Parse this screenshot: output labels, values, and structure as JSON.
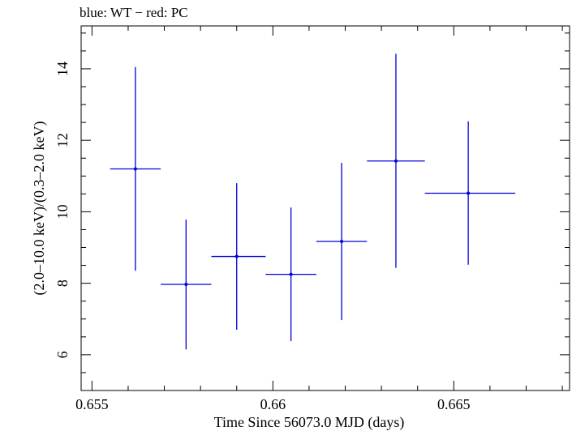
{
  "chart_data": {
    "type": "scatter",
    "title": "blue: WT − red: PC",
    "xlabel": "Time Since 56073.0 MJD (days)",
    "ylabel": "(2.0–10.0 keV)/(0.3–2.0 keV)",
    "xlim": [
      0.6547,
      0.6682
    ],
    "ylim": [
      5.0,
      15.2
    ],
    "xticks": [
      0.655,
      0.66,
      0.665
    ],
    "xtick_labels": [
      "0.655",
      "0.66",
      "0.665"
    ],
    "yticks": [
      6,
      8,
      10,
      12,
      14
    ],
    "ytick_labels": [
      "6",
      "8",
      "10",
      "12",
      "14"
    ],
    "grid": false,
    "series": [
      {
        "name": "WT",
        "color": "#0000dd",
        "points": [
          {
            "x": 0.6562,
            "x_lo": 0.6555,
            "x_hi": 0.6569,
            "y": 11.2,
            "y_lo": 8.35,
            "y_hi": 14.05
          },
          {
            "x": 0.6576,
            "x_lo": 0.6569,
            "x_hi": 0.6583,
            "y": 7.97,
            "y_lo": 6.15,
            "y_hi": 9.78
          },
          {
            "x": 0.659,
            "x_lo": 0.6583,
            "x_hi": 0.6598,
            "y": 8.75,
            "y_lo": 6.7,
            "y_hi": 10.8
          },
          {
            "x": 0.6605,
            "x_lo": 0.6598,
            "x_hi": 0.6612,
            "y": 8.25,
            "y_lo": 6.38,
            "y_hi": 10.12
          },
          {
            "x": 0.6619,
            "x_lo": 0.6612,
            "x_hi": 0.6626,
            "y": 9.17,
            "y_lo": 6.97,
            "y_hi": 11.37
          },
          {
            "x": 0.6634,
            "x_lo": 0.6626,
            "x_hi": 0.6642,
            "y": 11.42,
            "y_lo": 8.43,
            "y_hi": 14.42
          },
          {
            "x": 0.6654,
            "x_lo": 0.6642,
            "x_hi": 0.6667,
            "y": 10.52,
            "y_lo": 8.52,
            "y_hi": 12.53
          }
        ]
      }
    ]
  }
}
